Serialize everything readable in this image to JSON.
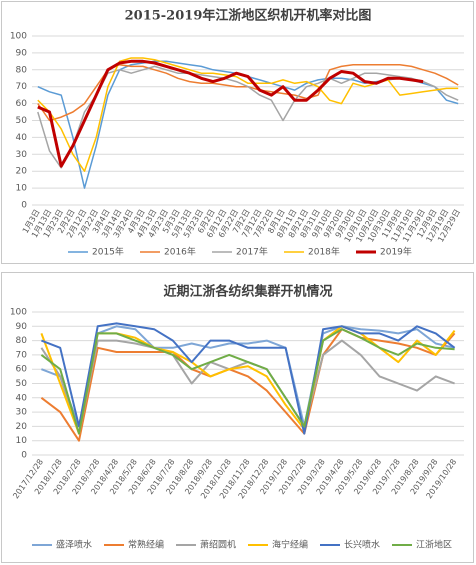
{
  "chart_data": [
    {
      "type": "line",
      "title": "2015-2019年江浙地区织机开机率对比图",
      "categories": [
        "1月3日",
        "1月13日",
        "1月23日",
        "2月2日",
        "2月12日",
        "2月22日",
        "3月4日",
        "3月14日",
        "3月24日",
        "4月3日",
        "4月13日",
        "4月23日",
        "5月3日",
        "5月13日",
        "5月23日",
        "6月2日",
        "6月12日",
        "6月22日",
        "7月2日",
        "7月12日",
        "7月22日",
        "8月1日",
        "8月11日",
        "8月21日",
        "8月31日",
        "9月10日",
        "9月20日",
        "9月30日",
        "10月10日",
        "10月20日",
        "10月30日",
        "11月9日",
        "11月19日",
        "11月29日",
        "12月9日",
        "12月19日",
        "12月29日"
      ],
      "series": [
        {
          "name": "2015年",
          "color": "#5b9bd5",
          "line_width": 1.5,
          "values": [
            70,
            67,
            65,
            40,
            10,
            35,
            65,
            80,
            83,
            84,
            85,
            85,
            84,
            83,
            82,
            80,
            79,
            78,
            76,
            74,
            72,
            70,
            68,
            72,
            74,
            75,
            75,
            74,
            72,
            73,
            74,
            75,
            74,
            72,
            70,
            62,
            60
          ]
        },
        {
          "name": "2016年",
          "color": "#ed7d31",
          "line_width": 1.5,
          "values": [
            60,
            50,
            52,
            55,
            60,
            70,
            80,
            83,
            82,
            82,
            80,
            78,
            75,
            73,
            72,
            72,
            71,
            70,
            70,
            68,
            67,
            66,
            65,
            63,
            65,
            80,
            82,
            83,
            83,
            83,
            83,
            83,
            82,
            80,
            78,
            75,
            71
          ]
        },
        {
          "name": "2017年",
          "color": "#a5a5a5",
          "line_width": 1.5,
          "values": [
            55,
            32,
            22,
            35,
            55,
            65,
            78,
            80,
            78,
            80,
            82,
            80,
            78,
            78,
            77,
            76,
            75,
            73,
            70,
            65,
            62,
            50,
            62,
            70,
            72,
            75,
            72,
            75,
            78,
            78,
            77,
            76,
            75,
            73,
            70,
            65,
            62
          ]
        },
        {
          "name": "2018年",
          "color": "#ffc000",
          "line_width": 1.5,
          "values": [
            62,
            55,
            45,
            30,
            20,
            40,
            70,
            85,
            87,
            87,
            86,
            84,
            82,
            80,
            78,
            78,
            77,
            76,
            72,
            72,
            72,
            74,
            72,
            73,
            70,
            62,
            60,
            72,
            70,
            72,
            74,
            65,
            66,
            67,
            68,
            69,
            69
          ]
        },
        {
          "name": "2019年",
          "color": "#c00000",
          "line_width": 3,
          "values": [
            58,
            55,
            23,
            35,
            50,
            65,
            80,
            84,
            85,
            85,
            84,
            82,
            80,
            78,
            75,
            73,
            75,
            78,
            76,
            68,
            65,
            70,
            62,
            62,
            68,
            75,
            79,
            78,
            73,
            72,
            75,
            75,
            74,
            73,
            null,
            null,
            null
          ]
        }
      ],
      "ylim": [
        0,
        100
      ],
      "yticks": [
        0,
        10,
        20,
        30,
        40,
        50,
        60,
        70,
        80,
        90,
        100
      ],
      "grid": true
    },
    {
      "type": "line",
      "title": "近期江浙各纺织集群开机情况",
      "categories": [
        "2017/12/28",
        "2018/1/28",
        "2018/2/28",
        "2018/3/28",
        "2018/4/28",
        "2018/5/28",
        "2018/6/28",
        "2018/7/28",
        "2018/8/28",
        "2018/9/28",
        "2018/10/28",
        "2018/11/28",
        "2018/12/28",
        "2019/1/28",
        "2019/2/28",
        "2019/3/28",
        "2019/4/28",
        "2019/5/28",
        "2019/6/28",
        "2019/7/28",
        "2019/8/28",
        "2019/9/28",
        "2019/10/28"
      ],
      "series": [
        {
          "name": "盛泽喷水",
          "color": "#7ea6d6",
          "line_width": 2,
          "values": [
            60,
            55,
            20,
            85,
            90,
            88,
            75,
            75,
            78,
            75,
            78,
            78,
            80,
            75,
            20,
            85,
            90,
            88,
            87,
            85,
            88,
            78,
            75
          ]
        },
        {
          "name": "常熟经编",
          "color": "#ed7d31",
          "line_width": 2,
          "values": [
            40,
            30,
            10,
            75,
            72,
            72,
            72,
            72,
            60,
            55,
            60,
            55,
            45,
            30,
            15,
            70,
            88,
            82,
            80,
            78,
            75,
            70,
            85
          ]
        },
        {
          "name": "萧绍圆机",
          "color": "#a5a5a5",
          "line_width": 2,
          "values": [
            75,
            55,
            15,
            80,
            80,
            78,
            75,
            70,
            50,
            65,
            60,
            65,
            60,
            40,
            20,
            70,
            80,
            70,
            55,
            50,
            45,
            55,
            50
          ]
        },
        {
          "name": "海宁经编",
          "color": "#ffc000",
          "line_width": 2,
          "values": [
            85,
            50,
            15,
            85,
            85,
            82,
            75,
            72,
            65,
            55,
            60,
            62,
            55,
            35,
            18,
            80,
            90,
            85,
            75,
            65,
            80,
            70,
            87
          ]
        },
        {
          "name": "长兴喷水",
          "color": "#4472c4",
          "line_width": 2,
          "values": [
            80,
            75,
            20,
            90,
            92,
            90,
            88,
            80,
            65,
            80,
            80,
            75,
            75,
            75,
            15,
            88,
            90,
            85,
            85,
            80,
            90,
            85,
            75
          ]
        },
        {
          "name": "江浙地区",
          "color": "#70ad47",
          "line_width": 2,
          "values": [
            70,
            60,
            15,
            85,
            85,
            80,
            75,
            70,
            60,
            65,
            70,
            65,
            60,
            40,
            20,
            80,
            88,
            82,
            75,
            70,
            78,
            75,
            74
          ]
        }
      ],
      "ylim": [
        0,
        100
      ],
      "yticks": [
        0,
        10,
        20,
        30,
        40,
        50,
        60,
        70,
        80,
        90,
        100
      ],
      "grid": true
    }
  ]
}
